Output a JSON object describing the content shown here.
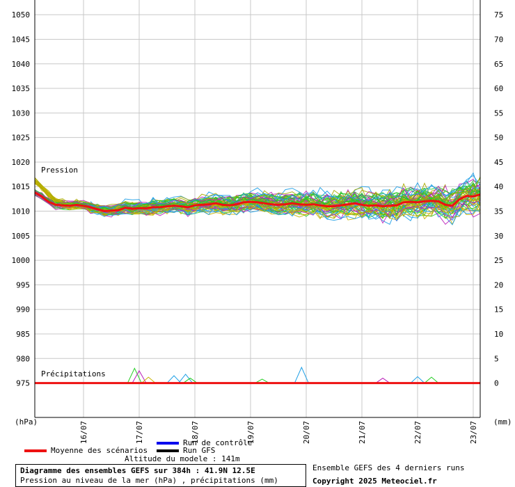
{
  "chart_data": {
    "type": "line",
    "left_axis": {
      "unit": "(hPa)",
      "min": 968,
      "max": 1053,
      "ticks": [
        975,
        980,
        985,
        990,
        995,
        1000,
        1005,
        1010,
        1015,
        1020,
        1025,
        1030,
        1035,
        1040,
        1045,
        1050
      ]
    },
    "right_axis": {
      "unit": "(mm)",
      "ticks": [
        0,
        5,
        10,
        15,
        20,
        25,
        30,
        35,
        40,
        45,
        50,
        55,
        60,
        65,
        70,
        75
      ]
    },
    "x_axis": {
      "range_hours": [
        0,
        384
      ],
      "dates": [
        {
          "label": "16/07",
          "h": 42
        },
        {
          "label": "17/07",
          "h": 90
        },
        {
          "label": "18/07",
          "h": 138
        },
        {
          "label": "19/07",
          "h": 186
        },
        {
          "label": "20/07",
          "h": 234
        },
        {
          "label": "21/07",
          "h": 282
        },
        {
          "label": "22/07",
          "h": 330
        },
        {
          "label": "23/07",
          "h": 378
        }
      ]
    },
    "annotations": {
      "pressure": "Pression",
      "precip": "Précipitations"
    },
    "mean_pressure_hpa": [
      [
        0,
        1013.8
      ],
      [
        6,
        1013.0
      ],
      [
        12,
        1011.9
      ],
      [
        18,
        1011.3
      ],
      [
        24,
        1011.2
      ],
      [
        30,
        1011.1
      ],
      [
        36,
        1011.3
      ],
      [
        42,
        1011.1
      ],
      [
        48,
        1010.8
      ],
      [
        54,
        1010.4
      ],
      [
        60,
        1010.0
      ],
      [
        66,
        1010.1
      ],
      [
        72,
        1010.2
      ],
      [
        78,
        1010.7
      ],
      [
        84,
        1010.5
      ],
      [
        90,
        1010.6
      ],
      [
        96,
        1010.6
      ],
      [
        102,
        1010.8
      ],
      [
        108,
        1010.8
      ],
      [
        114,
        1011.0
      ],
      [
        120,
        1011.1
      ],
      [
        126,
        1011.0
      ],
      [
        132,
        1010.8
      ],
      [
        138,
        1011.2
      ],
      [
        144,
        1011.3
      ],
      [
        150,
        1011.4
      ],
      [
        156,
        1011.6
      ],
      [
        162,
        1011.3
      ],
      [
        168,
        1011.2
      ],
      [
        174,
        1011.4
      ],
      [
        180,
        1011.8
      ],
      [
        186,
        1011.9
      ],
      [
        192,
        1011.8
      ],
      [
        198,
        1011.6
      ],
      [
        204,
        1011.4
      ],
      [
        210,
        1011.3
      ],
      [
        216,
        1011.4
      ],
      [
        222,
        1011.6
      ],
      [
        228,
        1011.4
      ],
      [
        234,
        1011.3
      ],
      [
        240,
        1011.4
      ],
      [
        246,
        1011.2
      ],
      [
        252,
        1011.0
      ],
      [
        258,
        1011.0
      ],
      [
        264,
        1011.2
      ],
      [
        270,
        1011.4
      ],
      [
        276,
        1011.6
      ],
      [
        282,
        1011.3
      ],
      [
        288,
        1011.1
      ],
      [
        294,
        1011.2
      ],
      [
        300,
        1011.0
      ],
      [
        306,
        1011.1
      ],
      [
        312,
        1011.2
      ],
      [
        318,
        1011.8
      ],
      [
        324,
        1011.9
      ],
      [
        330,
        1011.8
      ],
      [
        336,
        1012.0
      ],
      [
        342,
        1012.1
      ],
      [
        348,
        1012.0
      ],
      [
        354,
        1011.3
      ],
      [
        360,
        1011.1
      ],
      [
        366,
        1012.4
      ],
      [
        372,
        1013.1
      ],
      [
        378,
        1013.0
      ],
      [
        384,
        1013.4
      ]
    ],
    "series": [
      {
        "name": "Moyenne des scénarios",
        "color": "#ee1111"
      },
      {
        "name": "Run de contrôle",
        "color": "#0000ee"
      },
      {
        "name": "Run GFS",
        "color": "#000000"
      }
    ],
    "ensemble_colors": [
      "#22cc22",
      "#c8b400",
      "#bb22bb",
      "#1e9fe6",
      "#33bb33",
      "#aaaa00"
    ],
    "grid": true,
    "title": "Diagramme des ensembles GEFS sur 384h : 41.9N 12.5E",
    "subtitle": "Pression au niveau de la mer (hPa) , précipitations (mm)"
  },
  "legend": {
    "mean": "Moyenne des scénarios",
    "control": "Run de contrôle",
    "gfs": "Run GFS",
    "altitude": "Altitude du modele : 141m"
  },
  "info": {
    "title": "Diagramme des ensembles GEFS sur 384h : 41.9N 12.5E",
    "subtitle": "Pression au niveau de la mer (hPa) , précipitations (mm)",
    "runs_note": "Ensemble GEFS des 4 derniers runs",
    "copyright": "Copyright 2025 Meteociel.fr"
  }
}
